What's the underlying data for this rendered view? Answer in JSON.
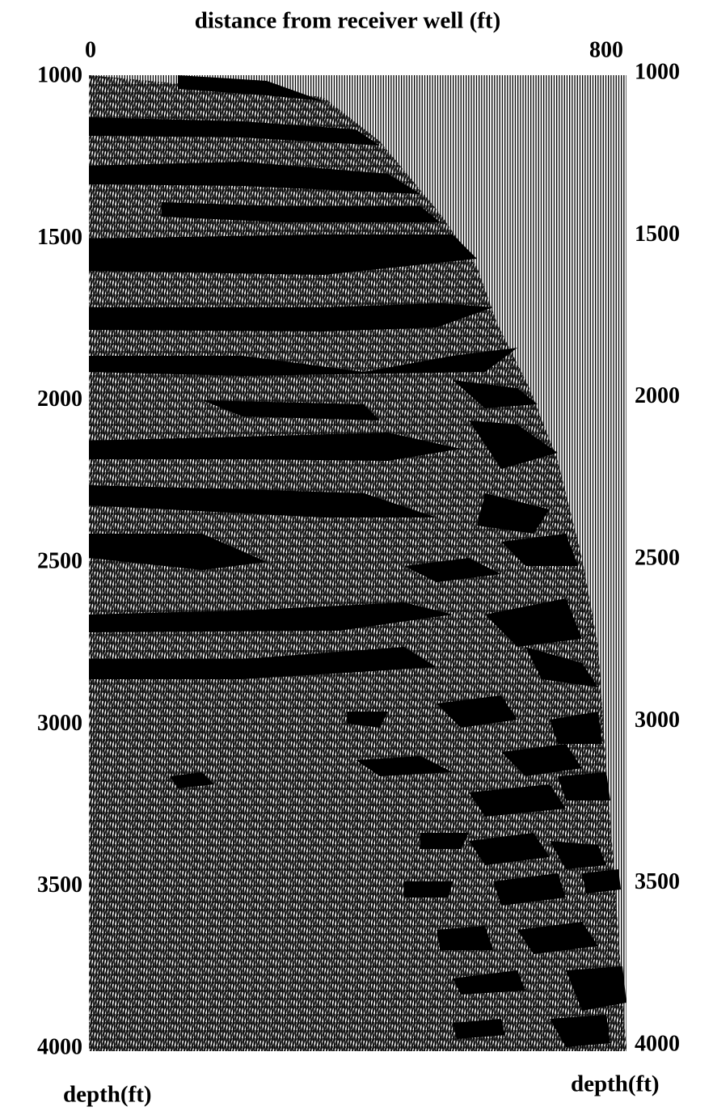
{
  "figure": {
    "title": "distance from receiver well (ft)",
    "x_axis": {
      "ticks": [
        0,
        800
      ],
      "range": [
        0,
        800
      ]
    },
    "y_axis": {
      "ticks": [
        1000,
        1500,
        2000,
        2500,
        3000,
        3500,
        4000
      ],
      "range": [
        1000,
        4000
      ]
    },
    "left_label": "depth(ft)",
    "right_label": "depth(ft)"
  }
}
